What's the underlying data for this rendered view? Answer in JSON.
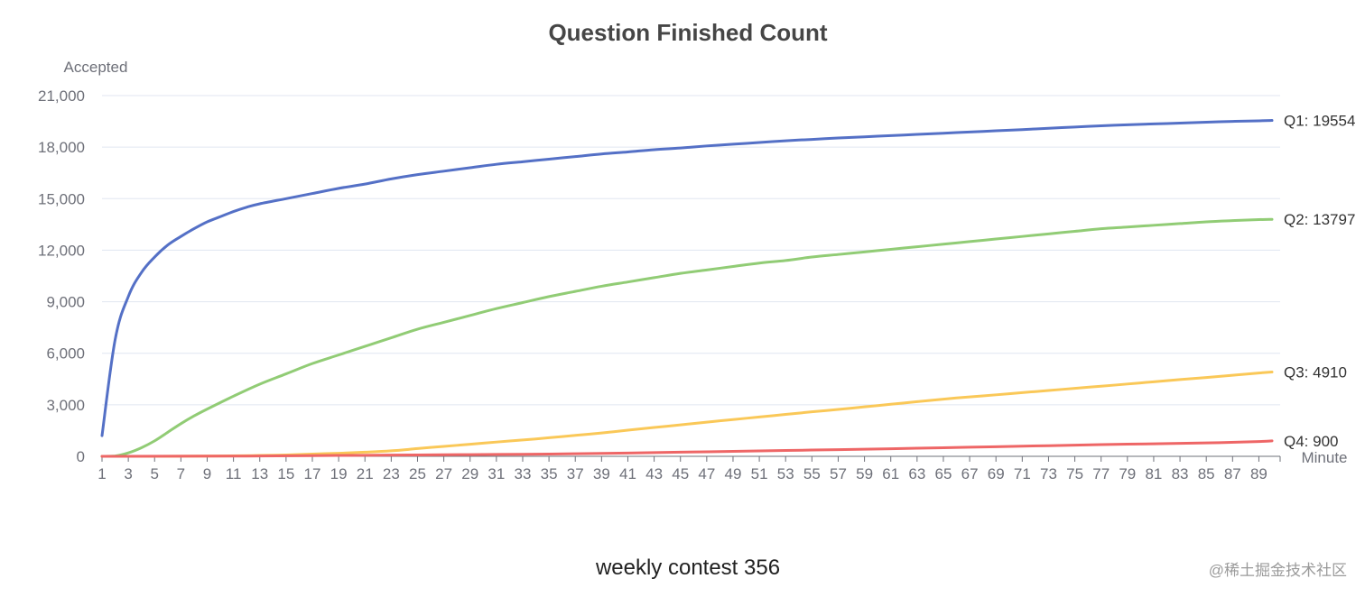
{
  "chart_data": {
    "type": "line",
    "title": "Question Finished Count",
    "footer": "weekly contest 356",
    "watermark": "@稀土掘金技术社区",
    "xlabel": "Minute",
    "ylabel": "Accepted",
    "ylim": [
      0,
      21000
    ],
    "y_ticks": [
      0,
      3000,
      6000,
      9000,
      12000,
      15000,
      18000,
      21000
    ],
    "y_tick_labels": [
      "0",
      "3,000",
      "6,000",
      "9,000",
      "12,000",
      "15,000",
      "18,000",
      "21,000"
    ],
    "x_range": [
      1,
      90
    ],
    "x_tick_labels": [
      "1",
      "3",
      "5",
      "7",
      "9",
      "11",
      "13",
      "15",
      "17",
      "19",
      "21",
      "23",
      "25",
      "27",
      "29",
      "31",
      "33",
      "35",
      "37",
      "39",
      "41",
      "43",
      "45",
      "47",
      "49",
      "51",
      "53",
      "55",
      "57",
      "59",
      "61",
      "63",
      "65",
      "67",
      "69",
      "71",
      "73",
      "75",
      "77",
      "79",
      "81",
      "83",
      "85",
      "87",
      "89"
    ],
    "grid": true,
    "legend": "end-labels",
    "series": [
      {
        "name": "Q1",
        "end_label": "Q1: 19554",
        "color": "#5470c6",
        "points": [
          [
            1,
            1200
          ],
          [
            2,
            6800
          ],
          [
            3,
            9300
          ],
          [
            4,
            10700
          ],
          [
            5,
            11600
          ],
          [
            6,
            12300
          ],
          [
            7,
            12800
          ],
          [
            8,
            13250
          ],
          [
            9,
            13650
          ],
          [
            10,
            13950
          ],
          [
            11,
            14250
          ],
          [
            12,
            14500
          ],
          [
            13,
            14700
          ],
          [
            15,
            15000
          ],
          [
            17,
            15300
          ],
          [
            19,
            15600
          ],
          [
            21,
            15850
          ],
          [
            23,
            16150
          ],
          [
            25,
            16400
          ],
          [
            27,
            16600
          ],
          [
            29,
            16800
          ],
          [
            31,
            17000
          ],
          [
            33,
            17150
          ],
          [
            35,
            17300
          ],
          [
            37,
            17450
          ],
          [
            39,
            17600
          ],
          [
            41,
            17720
          ],
          [
            43,
            17850
          ],
          [
            45,
            17950
          ],
          [
            47,
            18070
          ],
          [
            49,
            18170
          ],
          [
            51,
            18270
          ],
          [
            53,
            18370
          ],
          [
            55,
            18450
          ],
          [
            57,
            18530
          ],
          [
            59,
            18600
          ],
          [
            61,
            18670
          ],
          [
            63,
            18740
          ],
          [
            65,
            18810
          ],
          [
            67,
            18880
          ],
          [
            69,
            18950
          ],
          [
            71,
            19020
          ],
          [
            73,
            19100
          ],
          [
            75,
            19170
          ],
          [
            77,
            19240
          ],
          [
            79,
            19300
          ],
          [
            81,
            19350
          ],
          [
            83,
            19400
          ],
          [
            85,
            19450
          ],
          [
            87,
            19500
          ],
          [
            89,
            19530
          ],
          [
            90,
            19554
          ]
        ]
      },
      {
        "name": "Q2",
        "end_label": "Q2: 13797",
        "color": "#91cc75",
        "points": [
          [
            1,
            0
          ],
          [
            2,
            20
          ],
          [
            3,
            200
          ],
          [
            4,
            500
          ],
          [
            5,
            900
          ],
          [
            6,
            1400
          ],
          [
            7,
            1900
          ],
          [
            8,
            2350
          ],
          [
            9,
            2750
          ],
          [
            11,
            3500
          ],
          [
            13,
            4200
          ],
          [
            15,
            4800
          ],
          [
            17,
            5400
          ],
          [
            19,
            5900
          ],
          [
            21,
            6400
          ],
          [
            23,
            6900
          ],
          [
            25,
            7400
          ],
          [
            27,
            7800
          ],
          [
            29,
            8200
          ],
          [
            31,
            8600
          ],
          [
            33,
            8950
          ],
          [
            35,
            9300
          ],
          [
            37,
            9600
          ],
          [
            39,
            9900
          ],
          [
            41,
            10150
          ],
          [
            43,
            10400
          ],
          [
            45,
            10650
          ],
          [
            47,
            10850
          ],
          [
            49,
            11050
          ],
          [
            51,
            11250
          ],
          [
            53,
            11400
          ],
          [
            55,
            11600
          ],
          [
            57,
            11750
          ],
          [
            59,
            11900
          ],
          [
            61,
            12050
          ],
          [
            63,
            12200
          ],
          [
            65,
            12350
          ],
          [
            67,
            12500
          ],
          [
            69,
            12650
          ],
          [
            71,
            12800
          ],
          [
            73,
            12950
          ],
          [
            75,
            13100
          ],
          [
            77,
            13250
          ],
          [
            79,
            13350
          ],
          [
            81,
            13450
          ],
          [
            83,
            13550
          ],
          [
            85,
            13650
          ],
          [
            87,
            13720
          ],
          [
            89,
            13780
          ],
          [
            90,
            13797
          ]
        ]
      },
      {
        "name": "Q3",
        "end_label": "Q3: 4910",
        "color": "#fac858",
        "points": [
          [
            1,
            0
          ],
          [
            5,
            0
          ],
          [
            10,
            20
          ],
          [
            13,
            50
          ],
          [
            15,
            80
          ],
          [
            17,
            130
          ],
          [
            19,
            180
          ],
          [
            21,
            240
          ],
          [
            23,
            320
          ],
          [
            25,
            450
          ],
          [
            27,
            580
          ],
          [
            29,
            700
          ],
          [
            31,
            830
          ],
          [
            33,
            950
          ],
          [
            35,
            1080
          ],
          [
            37,
            1220
          ],
          [
            39,
            1360
          ],
          [
            41,
            1520
          ],
          [
            43,
            1680
          ],
          [
            45,
            1830
          ],
          [
            47,
            1990
          ],
          [
            49,
            2140
          ],
          [
            51,
            2290
          ],
          [
            53,
            2440
          ],
          [
            55,
            2590
          ],
          [
            57,
            2730
          ],
          [
            59,
            2880
          ],
          [
            61,
            3030
          ],
          [
            63,
            3180
          ],
          [
            65,
            3330
          ],
          [
            67,
            3460
          ],
          [
            69,
            3580
          ],
          [
            71,
            3710
          ],
          [
            73,
            3830
          ],
          [
            75,
            3960
          ],
          [
            77,
            4080
          ],
          [
            79,
            4210
          ],
          [
            81,
            4340
          ],
          [
            83,
            4470
          ],
          [
            85,
            4590
          ],
          [
            87,
            4720
          ],
          [
            89,
            4850
          ],
          [
            90,
            4910
          ]
        ]
      },
      {
        "name": "Q4",
        "end_label": "Q4: 900",
        "color": "#ee6666",
        "points": [
          [
            1,
            0
          ],
          [
            10,
            10
          ],
          [
            13,
            20
          ],
          [
            17,
            40
          ],
          [
            21,
            60
          ],
          [
            25,
            80
          ],
          [
            29,
            100
          ],
          [
            33,
            120
          ],
          [
            37,
            150
          ],
          [
            41,
            190
          ],
          [
            45,
            240
          ],
          [
            49,
            290
          ],
          [
            53,
            340
          ],
          [
            57,
            390
          ],
          [
            61,
            440
          ],
          [
            65,
            500
          ],
          [
            69,
            560
          ],
          [
            73,
            620
          ],
          [
            77,
            680
          ],
          [
            81,
            730
          ],
          [
            85,
            780
          ],
          [
            89,
            860
          ],
          [
            90,
            900
          ]
        ]
      }
    ]
  }
}
